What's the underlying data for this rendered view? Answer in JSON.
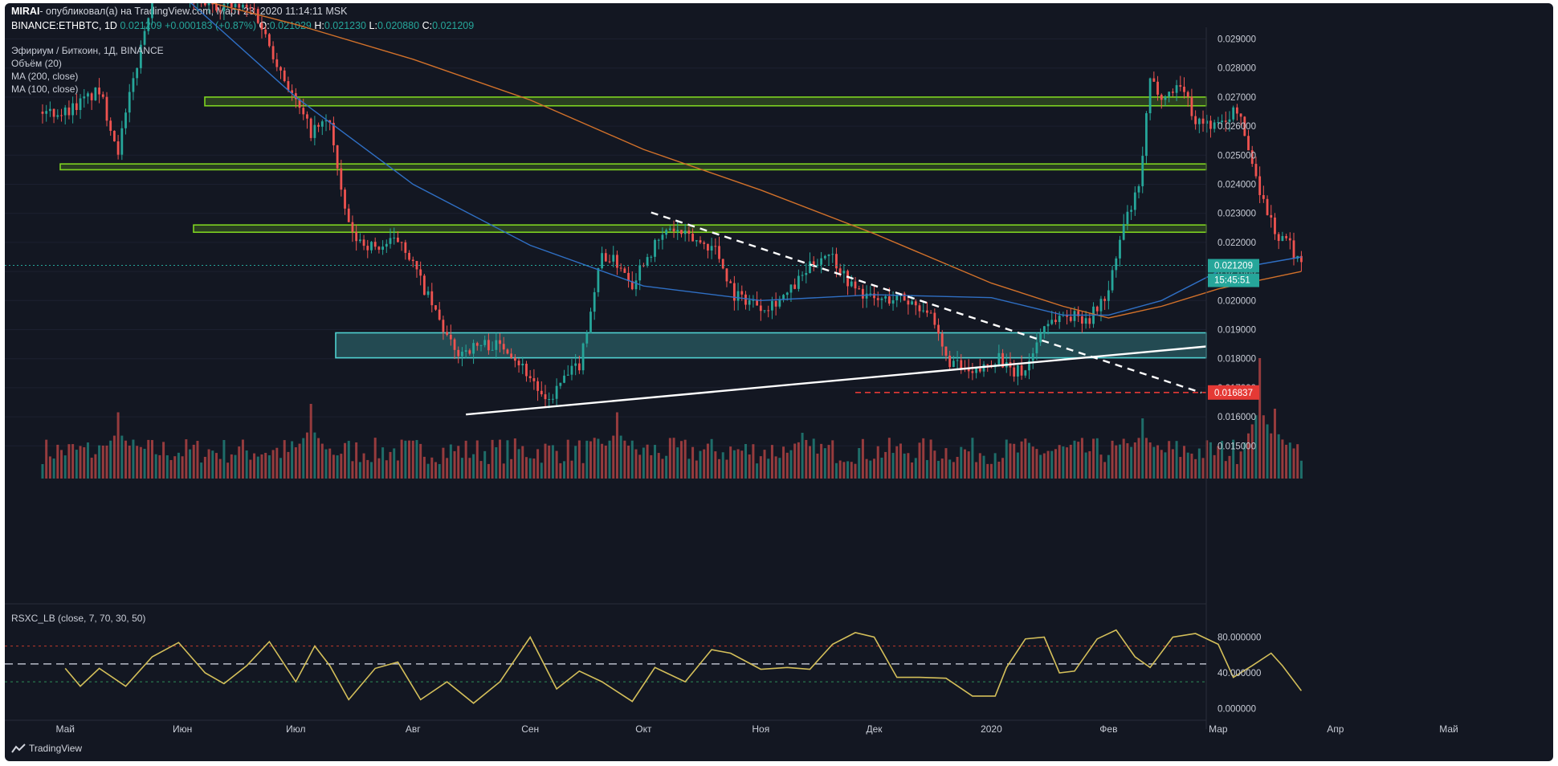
{
  "header": {
    "author": "MIRAI",
    "published": "- опубликовал(а) на TradingView.com, Март 23, 2020 11:14:11 MSK",
    "symbol": "BINANCE:ETHBTC, 1D",
    "price": "0.021209",
    "change": "+0.000183 (+0.87%)",
    "o_label": "O:",
    "o_value": "0.021029",
    "h_label": "H:",
    "h_value": "0.021230",
    "l_label": "L:",
    "l_value": "0.020880",
    "c_label": "C:",
    "c_value": "0.021209"
  },
  "legend": {
    "title": "Эфириум / Биткоин, 1Д, BINANCE",
    "volume": "Объём (20)",
    "ma200": "MA (200, close)",
    "ma100": "MA (100, close)"
  },
  "rsi_label": "RSXC_LB (close, 7, 70, 30, 50)",
  "brand": "TradingView",
  "colors": {
    "background": "#131722",
    "up": "#26a69a",
    "down": "#ef5350",
    "ma200": "#d2712a",
    "ma100": "#2f6fc4",
    "zone_green": "#7ed321",
    "zone_teal": "#4fd1d0",
    "rsi": "#d4bf5a",
    "last_price": "#26a69a",
    "target": "#e53935"
  },
  "chart_data": {
    "type": "candlestick",
    "title": "Эфириум / Биткоин, 1Д, BINANCE",
    "x_axis": {
      "ticks": [
        "Май",
        "Июн",
        "Июл",
        "Авг",
        "Сен",
        "Окт",
        "Ноя",
        "Дек",
        "2020",
        "Фев",
        "Мар",
        "Апр",
        "Май"
      ]
    },
    "y_axis": {
      "ylim": [
        0.0143,
        0.0294
      ],
      "ticks": [
        "0.015000",
        "0.016000",
        "0.017000",
        "0.018000",
        "0.019000",
        "0.020000",
        "0.021000",
        "0.022000",
        "0.023000",
        "0.024000",
        "0.025000",
        "0.026000",
        "0.027000",
        "0.028000",
        "0.029000"
      ]
    },
    "path_points": [
      [
        "2019-05-01",
        0.0265
      ],
      [
        "2019-05-10",
        0.0272
      ],
      [
        "2019-05-15",
        0.0252
      ],
      [
        "2019-05-24",
        0.0305
      ],
      [
        "2019-06-20",
        0.03
      ],
      [
        "2019-06-25",
        0.0285
      ],
      [
        "2019-07-01",
        0.0268
      ],
      [
        "2019-07-05",
        0.0258
      ],
      [
        "2019-07-10",
        0.0262
      ],
      [
        "2019-07-13",
        0.0236
      ],
      [
        "2019-07-16",
        0.0222
      ],
      [
        "2019-07-22",
        0.0218
      ],
      [
        "2019-07-29",
        0.0221
      ],
      [
        "2019-08-05",
        0.0201
      ],
      [
        "2019-08-12",
        0.0182
      ],
      [
        "2019-08-20",
        0.0185
      ],
      [
        "2019-08-26",
        0.0184
      ],
      [
        "2019-09-02",
        0.0172
      ],
      [
        "2019-09-05",
        0.0164
      ],
      [
        "2019-09-10",
        0.0173
      ],
      [
        "2019-09-14",
        0.0178
      ],
      [
        "2019-09-20",
        0.0216
      ],
      [
        "2019-09-25",
        0.0212
      ],
      [
        "2019-09-28",
        0.0206
      ],
      [
        "2019-10-01",
        0.0214
      ],
      [
        "2019-10-08",
        0.0225
      ],
      [
        "2019-10-12",
        0.0222
      ],
      [
        "2019-10-20",
        0.0218
      ],
      [
        "2019-10-25",
        0.0202
      ],
      [
        "2019-11-02",
        0.0198
      ],
      [
        "2019-11-08",
        0.0202
      ],
      [
        "2019-11-15",
        0.0213
      ],
      [
        "2019-11-19",
        0.0217
      ],
      [
        "2019-11-25",
        0.0205
      ],
      [
        "2019-12-01",
        0.02
      ],
      [
        "2019-12-08",
        0.0201
      ],
      [
        "2019-12-15",
        0.0197
      ],
      [
        "2019-12-20",
        0.018
      ],
      [
        "2019-12-27",
        0.0174
      ],
      [
        "2020-01-03",
        0.0181
      ],
      [
        "2020-01-06",
        0.0175
      ],
      [
        "2020-01-10",
        0.0176
      ],
      [
        "2020-01-15",
        0.0192
      ],
      [
        "2020-01-20",
        0.0195
      ],
      [
        "2020-01-27",
        0.0194
      ],
      [
        "2020-02-01",
        0.0203
      ],
      [
        "2020-02-05",
        0.0226
      ],
      [
        "2020-02-09",
        0.0238
      ],
      [
        "2020-02-12",
        0.0275
      ],
      [
        "2020-02-16",
        0.027
      ],
      [
        "2020-02-20",
        0.0275
      ],
      [
        "2020-02-24",
        0.0262
      ],
      [
        "2020-03-01",
        0.026
      ],
      [
        "2020-03-06",
        0.0266
      ],
      [
        "2020-03-09",
        0.0252
      ],
      [
        "2020-03-13",
        0.0234
      ],
      [
        "2020-03-17",
        0.0221
      ],
      [
        "2020-03-19",
        0.0221
      ],
      [
        "2020-03-23",
        0.02121
      ]
    ],
    "ma200": [
      [
        "2019-06-01",
        0.0305
      ],
      [
        "2019-07-01",
        0.0295
      ],
      [
        "2019-08-01",
        0.0283
      ],
      [
        "2019-09-01",
        0.0269
      ],
      [
        "2019-10-01",
        0.0252
      ],
      [
        "2019-11-01",
        0.0238
      ],
      [
        "2019-12-01",
        0.0223
      ],
      [
        "2020-01-01",
        0.0206
      ],
      [
        "2020-01-20",
        0.0198
      ],
      [
        "2020-02-01",
        0.0194
      ],
      [
        "2020-02-15",
        0.0198
      ],
      [
        "2020-03-01",
        0.0204
      ],
      [
        "2020-03-23",
        0.021
      ]
    ],
    "ma100": [
      [
        "2019-06-01",
        0.0305
      ],
      [
        "2019-07-01",
        0.027
      ],
      [
        "2019-08-01",
        0.024
      ],
      [
        "2019-09-01",
        0.0219
      ],
      [
        "2019-10-01",
        0.0205
      ],
      [
        "2019-11-01",
        0.02
      ],
      [
        "2019-12-01",
        0.0202
      ],
      [
        "2020-01-01",
        0.0201
      ],
      [
        "2020-01-20",
        0.0195
      ],
      [
        "2020-02-01",
        0.0195
      ],
      [
        "2020-02-15",
        0.02
      ],
      [
        "2020-03-01",
        0.021
      ],
      [
        "2020-03-23",
        0.0215
      ]
    ],
    "annotations": {
      "resistance_zones": [
        [
          0.0267,
          0.027
        ],
        [
          0.0245,
          0.0247
        ],
        [
          0.02235,
          0.0226
        ]
      ],
      "support_zone": [
        0.01803,
        0.01889
      ],
      "rising_trendline": [
        [
          "2019-08-15",
          0.01608
        ],
        [
          "2020-04-30",
          0.01842
        ]
      ],
      "falling_trendline": [
        [
          "2019-10-03",
          0.02303
        ],
        [
          "2020-04-30",
          0.01683
        ]
      ],
      "target_line": {
        "from": "2019-11-26",
        "value": 0.016837,
        "label": "0.016837"
      },
      "last_price": {
        "value": 0.021209,
        "label": "0.021209",
        "countdown": "15:45:51"
      }
    },
    "volume": {
      "label": "Объём (20)",
      "spikes": [
        [
          "2019-05-15",
          0.55
        ],
        [
          "2019-07-05",
          0.62
        ],
        [
          "2019-09-24",
          0.55
        ],
        [
          "2019-11-12",
          0.38
        ],
        [
          "2020-02-10",
          0.5
        ],
        [
          "2020-03-12",
          1.0
        ],
        [
          "2020-03-16",
          0.58
        ]
      ]
    },
    "rsi": {
      "label": "RSXC_LB (close, 7, 70, 30, 50)",
      "ticks": [
        "80.000000",
        "40.000000",
        "0.000000"
      ],
      "levels": [
        70,
        50,
        30
      ],
      "ylim": [
        -5,
        100
      ],
      "points": [
        [
          "2019-05-01",
          45
        ],
        [
          "2019-05-05",
          25
        ],
        [
          "2019-05-10",
          45
        ],
        [
          "2019-05-17",
          25
        ],
        [
          "2019-05-24",
          58
        ],
        [
          "2019-05-31",
          74
        ],
        [
          "2019-06-07",
          40
        ],
        [
          "2019-06-12",
          28
        ],
        [
          "2019-06-18",
          48
        ],
        [
          "2019-06-24",
          75
        ],
        [
          "2019-07-01",
          30
        ],
        [
          "2019-07-06",
          70
        ],
        [
          "2019-07-10",
          48
        ],
        [
          "2019-07-15",
          10
        ],
        [
          "2019-07-22",
          45
        ],
        [
          "2019-07-28",
          52
        ],
        [
          "2019-08-03",
          10
        ],
        [
          "2019-08-10",
          30
        ],
        [
          "2019-08-17",
          6
        ],
        [
          "2019-08-24",
          30
        ],
        [
          "2019-09-01",
          80
        ],
        [
          "2019-09-08",
          22
        ],
        [
          "2019-09-14",
          42
        ],
        [
          "2019-09-20",
          30
        ],
        [
          "2019-09-28",
          8
        ],
        [
          "2019-10-04",
          46
        ],
        [
          "2019-10-12",
          30
        ],
        [
          "2019-10-19",
          66
        ],
        [
          "2019-10-24",
          62
        ],
        [
          "2019-11-01",
          44
        ],
        [
          "2019-11-08",
          46
        ],
        [
          "2019-11-14",
          44
        ],
        [
          "2019-11-20",
          72
        ],
        [
          "2019-11-26",
          85
        ],
        [
          "2019-12-01",
          80
        ],
        [
          "2019-12-07",
          35
        ],
        [
          "2019-12-13",
          35
        ],
        [
          "2019-12-20",
          34
        ],
        [
          "2019-12-27",
          14
        ],
        [
          "2020-01-02",
          14
        ],
        [
          "2020-01-05",
          46
        ],
        [
          "2020-01-10",
          78
        ],
        [
          "2020-01-15",
          80
        ],
        [
          "2020-01-19",
          40
        ],
        [
          "2020-01-23",
          42
        ],
        [
          "2020-01-29",
          78
        ],
        [
          "2020-02-03",
          88
        ],
        [
          "2020-02-08",
          58
        ],
        [
          "2020-02-12",
          46
        ],
        [
          "2020-02-18",
          80
        ],
        [
          "2020-02-24",
          84
        ],
        [
          "2020-03-01",
          72
        ],
        [
          "2020-03-05",
          35
        ],
        [
          "2020-03-10",
          48
        ],
        [
          "2020-03-15",
          62
        ],
        [
          "2020-03-18",
          48
        ],
        [
          "2020-03-23",
          20
        ]
      ]
    }
  }
}
